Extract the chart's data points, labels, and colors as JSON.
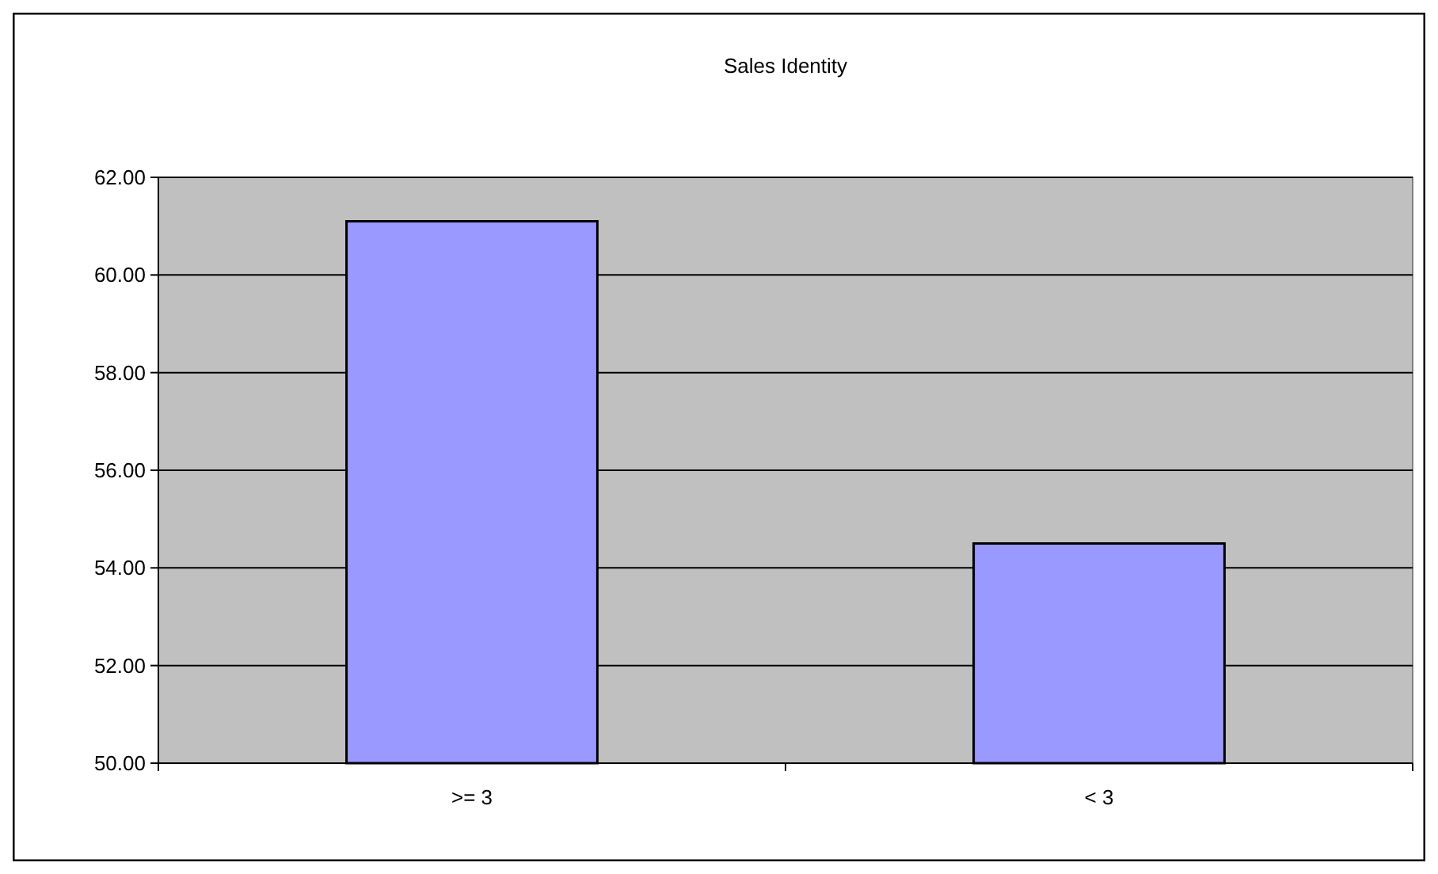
{
  "chart_data": {
    "type": "bar",
    "title": "Sales Identity",
    "categories": [
      ">= 3",
      "< 3"
    ],
    "values": [
      61.1,
      54.5
    ],
    "color": "#9999ff",
    "ylim": [
      50,
      62
    ],
    "yticks": [
      {
        "value": 50,
        "label": "50.00"
      },
      {
        "value": 52,
        "label": "52.00"
      },
      {
        "value": 54,
        "label": "54.00"
      },
      {
        "value": 56,
        "label": "56.00"
      },
      {
        "value": 58,
        "label": "58.00"
      },
      {
        "value": 60,
        "label": "60.00"
      },
      {
        "value": 62,
        "label": "62.00"
      }
    ],
    "grid": "y"
  }
}
